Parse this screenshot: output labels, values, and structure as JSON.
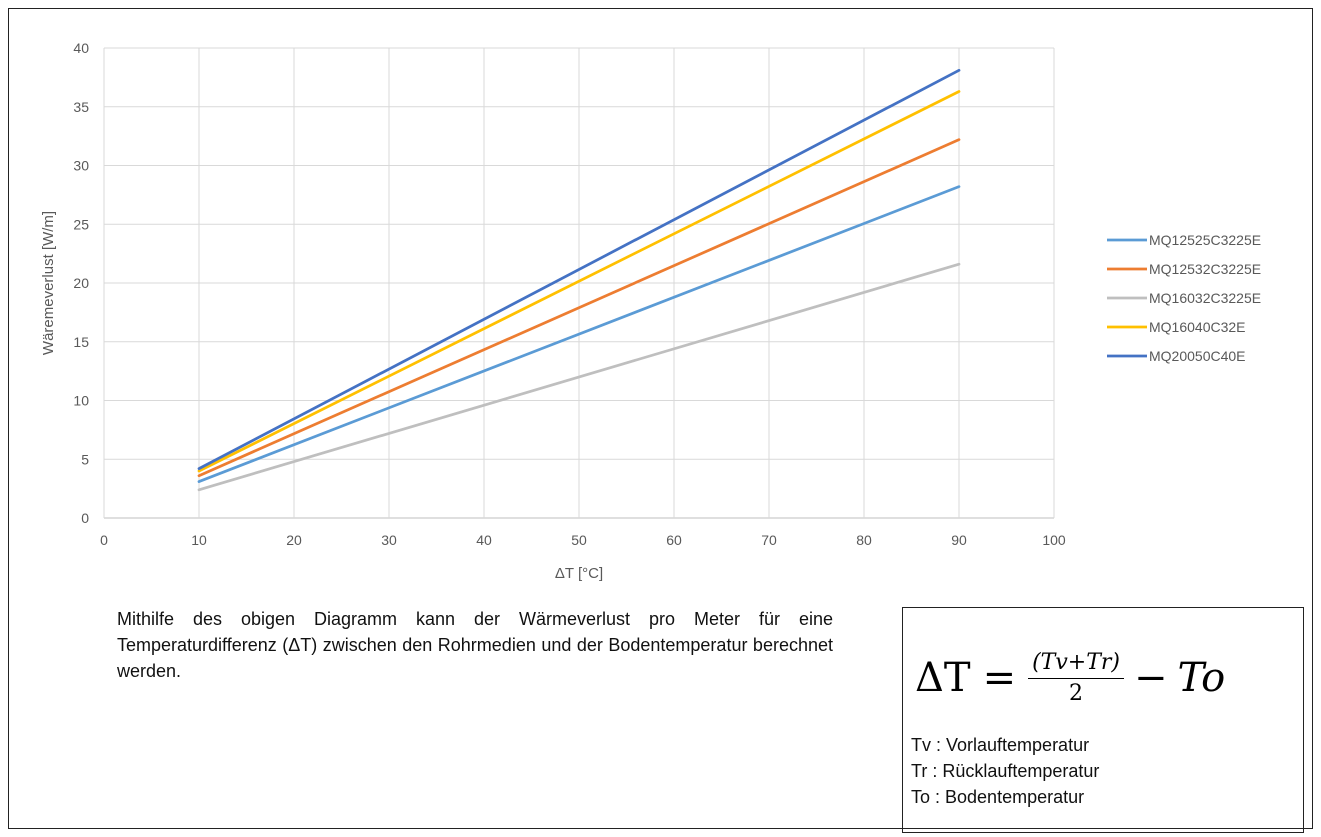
{
  "chart_data": {
    "type": "line",
    "xlabel": "ΔT [°C]",
    "ylabel": "Wäremeverlust [W/m]",
    "xlim": [
      0,
      100
    ],
    "ylim": [
      0,
      40
    ],
    "xticks": [
      0,
      10,
      20,
      30,
      40,
      50,
      60,
      70,
      80,
      90,
      100
    ],
    "yticks": [
      0,
      5,
      10,
      15,
      20,
      25,
      30,
      35,
      40
    ],
    "grid": true,
    "legend_position": "right",
    "series": [
      {
        "name": "MQ12525C3225E",
        "color": "#5b9bd5",
        "x": [
          10,
          90
        ],
        "y": [
          3.1,
          28.2
        ]
      },
      {
        "name": "MQ12532C3225E",
        "color": "#ed7d31",
        "x": [
          10,
          90
        ],
        "y": [
          3.6,
          32.2
        ]
      },
      {
        "name": "MQ16032C3225E",
        "color": "#bfbfbf",
        "x": [
          10,
          90
        ],
        "y": [
          2.4,
          21.6
        ]
      },
      {
        "name": "MQ16040C32E",
        "color": "#ffc000",
        "x": [
          10,
          90
        ],
        "y": [
          4.0,
          36.3
        ]
      },
      {
        "name": "MQ20050C40E",
        "color": "#4472c4",
        "x": [
          10,
          90
        ],
        "y": [
          4.2,
          38.1
        ]
      }
    ]
  },
  "description": "Mithilfe des obigen Diagramm kann der Wärmeverlust pro Meter für eine Temperaturdifferenz (ΔT) zwischen den Rohrmedien und der Bodentemperatur berechnet werden.",
  "formula": {
    "lhs": "ΔT",
    "eq": "=",
    "numerator": "(Tv+Tr)",
    "denominator": "2",
    "minus": "−",
    "last_term": "To",
    "definitions": [
      "Tv : Vorlauftemperatur",
      "Tr : Rücklauftemperatur",
      "To : Bodentemperatur"
    ]
  }
}
